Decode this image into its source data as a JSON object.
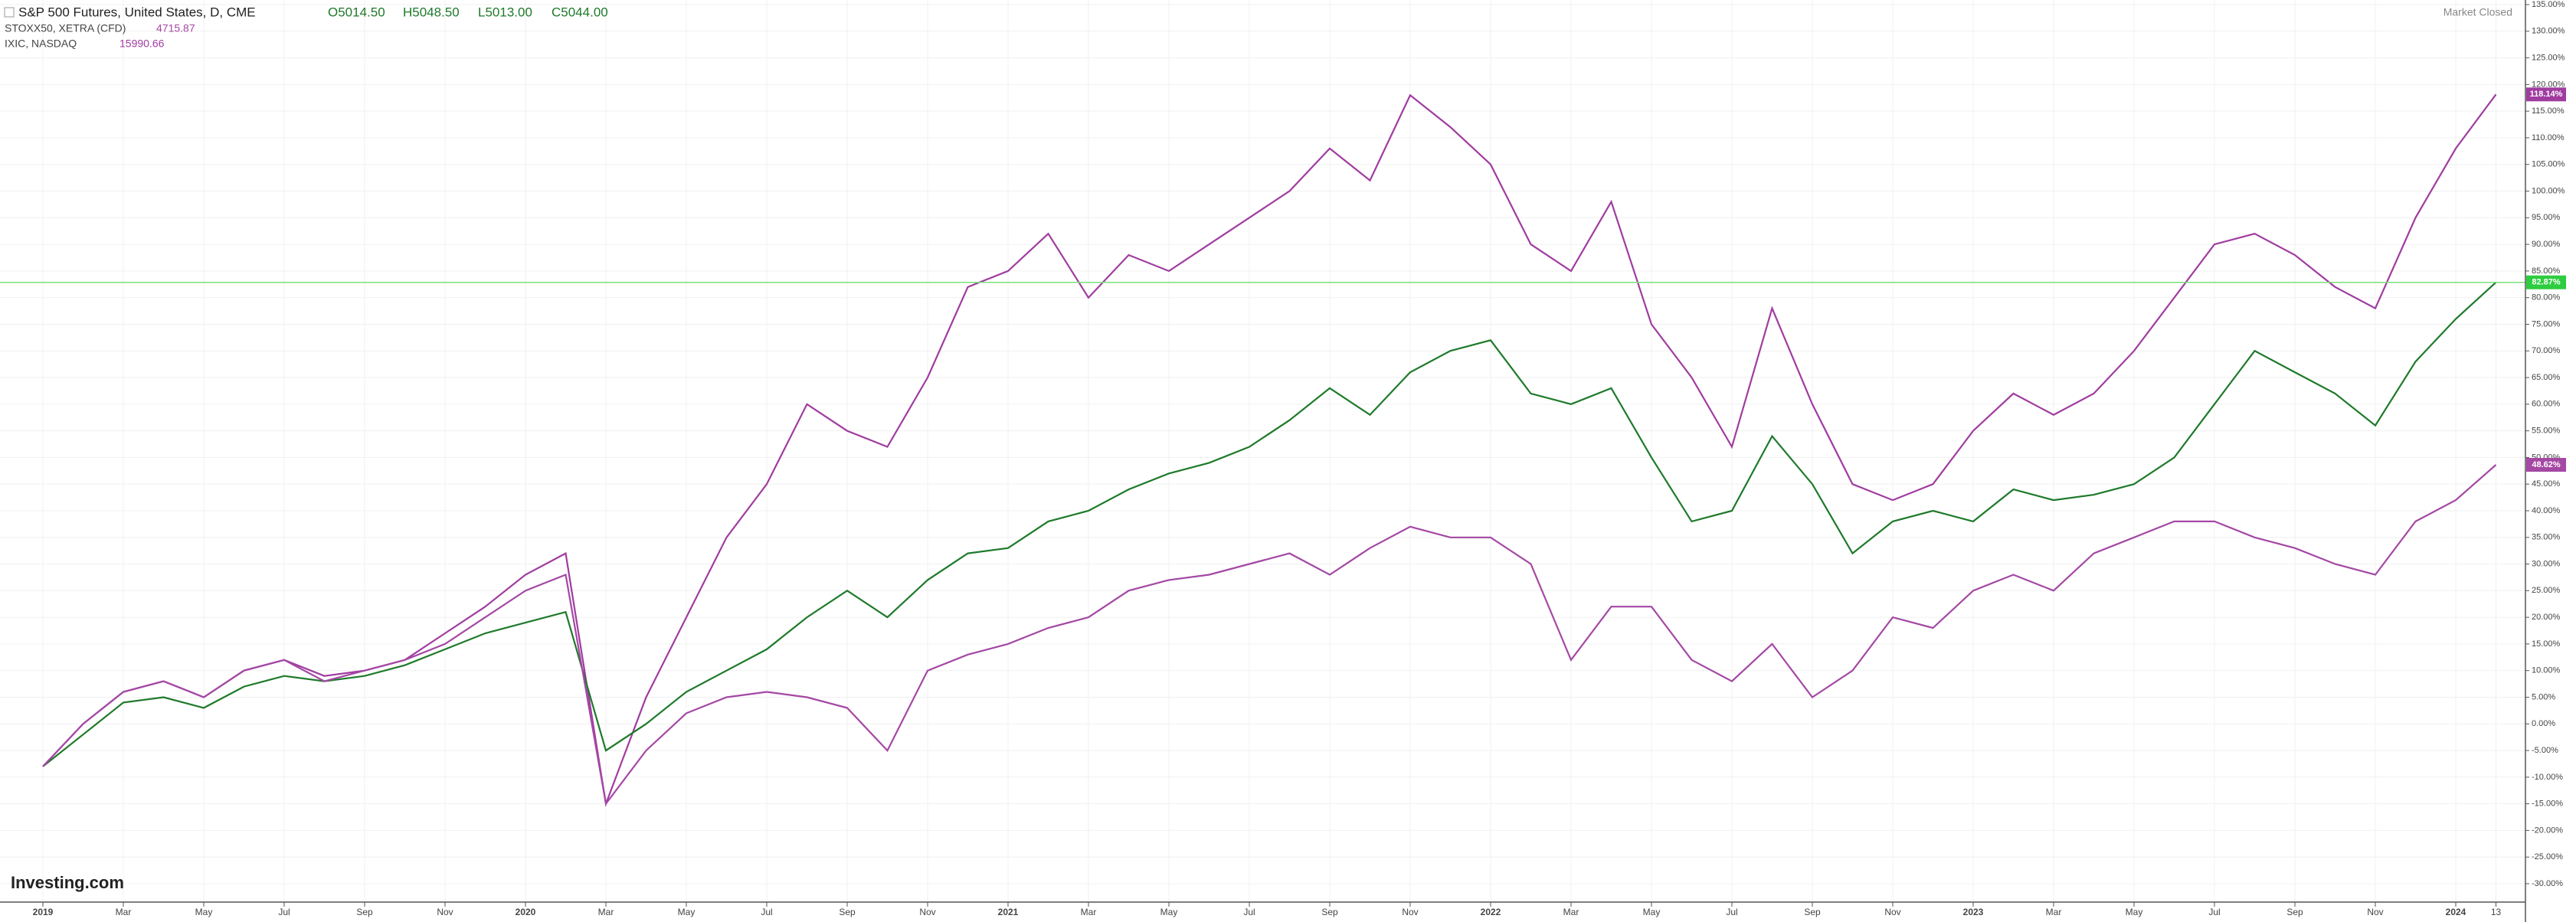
{
  "chart_data": {
    "type": "line",
    "header": {
      "main": {
        "name": "S&P 500 Futures, United States, D, CME",
        "open": "O5014.50",
        "high": "H5048.50",
        "low": "L5013.00",
        "close": "C5044.00"
      },
      "rows": [
        {
          "name": "STOXX50, XETRA (CFD)",
          "price": "4715.87"
        },
        {
          "name": "IXIC, NASDAQ",
          "price": "15990.66"
        }
      ],
      "status": "Market Closed",
      "logo": "Investing.com"
    },
    "x": [
      "2019-01",
      "2019-02",
      "2019-03",
      "2019-04",
      "2019-05",
      "2019-06",
      "2019-07",
      "2019-08",
      "2019-09",
      "2019-10",
      "2019-11",
      "2019-12",
      "2020-01",
      "2020-02",
      "2020-03",
      "2020-04",
      "2020-05",
      "2020-06",
      "2020-07",
      "2020-08",
      "2020-09",
      "2020-10",
      "2020-11",
      "2020-12",
      "2021-01",
      "2021-02",
      "2021-03",
      "2021-04",
      "2021-05",
      "2021-06",
      "2021-07",
      "2021-08",
      "2021-09",
      "2021-10",
      "2021-11",
      "2021-12",
      "2022-01",
      "2022-02",
      "2022-03",
      "2022-04",
      "2022-05",
      "2022-06",
      "2022-07",
      "2022-08",
      "2022-09",
      "2022-10",
      "2022-11",
      "2022-12",
      "2023-01",
      "2023-02",
      "2023-03",
      "2023-04",
      "2023-05",
      "2023-06",
      "2023-07",
      "2023-08",
      "2023-09",
      "2023-10",
      "2023-11",
      "2023-12",
      "2024-01",
      "2024-02"
    ],
    "series": [
      {
        "name": "IXIC",
        "color": "#a03ca0",
        "values": [
          -8,
          0,
          6,
          8,
          5,
          10,
          12,
          9,
          10,
          12,
          17,
          22,
          28,
          32,
          -15,
          5,
          20,
          35,
          45,
          60,
          55,
          52,
          65,
          82,
          85,
          92,
          80,
          88,
          85,
          90,
          95,
          100,
          108,
          102,
          118,
          112,
          105,
          90,
          85,
          98,
          75,
          65,
          52,
          78,
          60,
          45,
          42,
          45,
          55,
          62,
          58,
          62,
          70,
          80,
          90,
          92,
          88,
          82,
          78,
          95,
          108,
          118.14
        ],
        "last_label": "118.14%"
      },
      {
        "name": "S&P 500 Futures",
        "color": "#1e7a2a",
        "values": [
          -8,
          -2,
          4,
          5,
          3,
          7,
          9,
          8,
          9,
          11,
          14,
          17,
          19,
          21,
          -5,
          0,
          6,
          10,
          14,
          20,
          25,
          20,
          27,
          32,
          33,
          38,
          40,
          44,
          47,
          49,
          52,
          57,
          63,
          58,
          66,
          70,
          72,
          62,
          60,
          63,
          50,
          38,
          40,
          54,
          45,
          32,
          38,
          40,
          38,
          44,
          42,
          43,
          45,
          50,
          60,
          70,
          66,
          62,
          56,
          68,
          76,
          82.87
        ],
        "last_label": "82.87%",
        "price_line_color": "#7be07b"
      },
      {
        "name": "STOXX50",
        "color": "#a448a4",
        "values": [
          -8,
          0,
          6,
          8,
          5,
          10,
          12,
          8,
          10,
          12,
          15,
          20,
          25,
          28,
          -15,
          -5,
          2,
          5,
          6,
          5,
          3,
          -5,
          10,
          13,
          15,
          18,
          20,
          25,
          27,
          28,
          30,
          32,
          28,
          33,
          37,
          35,
          35,
          30,
          12,
          22,
          22,
          12,
          8,
          15,
          5,
          10,
          20,
          18,
          25,
          28,
          25,
          32,
          35,
          38,
          38,
          35,
          33,
          30,
          28,
          38,
          42,
          48.62
        ],
        "last_label": "48.62%"
      }
    ],
    "ylim": [
      -30,
      135
    ],
    "yticks": [
      {
        "value": -30,
        "label": "-30.00%"
      },
      {
        "value": -25,
        "label": "-25.00%"
      },
      {
        "value": -20,
        "label": "-20.00%"
      },
      {
        "value": -15,
        "label": "-15.00%"
      },
      {
        "value": -10,
        "label": "-10.00%"
      },
      {
        "value": -5,
        "label": "-5.00%"
      },
      {
        "value": 0,
        "label": "0.00%"
      },
      {
        "value": 5,
        "label": "5.00%"
      },
      {
        "value": 10,
        "label": "10.00%"
      },
      {
        "value": 15,
        "label": "15.00%"
      },
      {
        "value": 20,
        "label": "20.00%"
      },
      {
        "value": 25,
        "label": "25.00%"
      },
      {
        "value": 30,
        "label": "30.00%"
      },
      {
        "value": 35,
        "label": "35.00%"
      },
      {
        "value": 40,
        "label": "40.00%"
      },
      {
        "value": 45,
        "label": "45.00%"
      },
      {
        "value": 50,
        "label": "50.00%"
      },
      {
        "value": 55,
        "label": "55.00%"
      },
      {
        "value": 60,
        "label": "60.00%"
      },
      {
        "value": 65,
        "label": "65.00%"
      },
      {
        "value": 70,
        "label": "70.00%"
      },
      {
        "value": 75,
        "label": "75.00%"
      },
      {
        "value": 80,
        "label": "80.00%"
      },
      {
        "value": 85,
        "label": "85.00%"
      },
      {
        "value": 90,
        "label": "90.00%"
      },
      {
        "value": 95,
        "label": "95.00%"
      },
      {
        "value": 100,
        "label": "100.00%"
      },
      {
        "value": 105,
        "label": "105.00%"
      },
      {
        "value": 110,
        "label": "110.00%"
      },
      {
        "value": 115,
        "label": "115.00%"
      },
      {
        "value": 120,
        "label": "120.00%"
      },
      {
        "value": 125,
        "label": "125.00%"
      },
      {
        "value": 130,
        "label": "130.00%"
      },
      {
        "value": 135,
        "label": "135.00%"
      }
    ],
    "xticks": [
      {
        "value": "2019-01",
        "label": "2019"
      },
      {
        "value": "2019-03",
        "label": "Mar"
      },
      {
        "value": "2019-05",
        "label": "May"
      },
      {
        "value": "2019-07",
        "label": "Jul"
      },
      {
        "value": "2019-09",
        "label": "Sep"
      },
      {
        "value": "2019-11",
        "label": "Nov"
      },
      {
        "value": "2020-01",
        "label": "2020"
      },
      {
        "value": "2020-03",
        "label": "Mar"
      },
      {
        "value": "2020-05",
        "label": "May"
      },
      {
        "value": "2020-07",
        "label": "Jul"
      },
      {
        "value": "2020-09",
        "label": "Sep"
      },
      {
        "value": "2020-11",
        "label": "Nov"
      },
      {
        "value": "2021-01",
        "label": "2021"
      },
      {
        "value": "2021-03",
        "label": "Mar"
      },
      {
        "value": "2021-05",
        "label": "May"
      },
      {
        "value": "2021-07",
        "label": "Jul"
      },
      {
        "value": "2021-09",
        "label": "Sep"
      },
      {
        "value": "2021-11",
        "label": "Nov"
      },
      {
        "value": "2022-01",
        "label": "2022"
      },
      {
        "value": "2022-03",
        "label": "Mar"
      },
      {
        "value": "2022-05",
        "label": "May"
      },
      {
        "value": "2022-07",
        "label": "Jul"
      },
      {
        "value": "2022-09",
        "label": "Sep"
      },
      {
        "value": "2022-11",
        "label": "Nov"
      },
      {
        "value": "2023-01",
        "label": "2023"
      },
      {
        "value": "2023-03",
        "label": "Mar"
      },
      {
        "value": "2023-05",
        "label": "May"
      },
      {
        "value": "2023-07",
        "label": "Jul"
      },
      {
        "value": "2023-09",
        "label": "Sep"
      },
      {
        "value": "2023-11",
        "label": "Nov"
      },
      {
        "value": "2024-01",
        "label": "2024"
      },
      {
        "value": "2024-02",
        "label": "13"
      }
    ],
    "grid": true
  }
}
